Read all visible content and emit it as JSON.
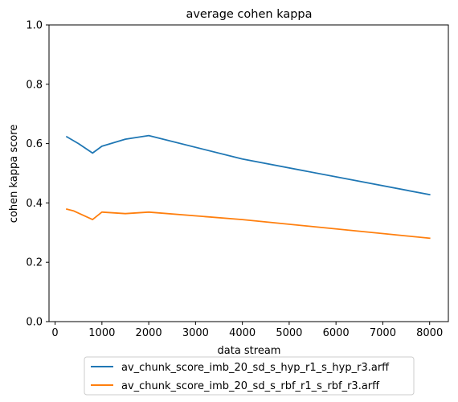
{
  "chart_data": {
    "type": "line",
    "title": "average cohen kappa",
    "xlabel": "data stream",
    "ylabel": "cohen kappa score",
    "xlim": [
      -130,
      8400
    ],
    "ylim": [
      0.0,
      1.0
    ],
    "xticks": [
      0,
      1000,
      2000,
      3000,
      4000,
      5000,
      6000,
      7000,
      8000
    ],
    "yticks": [
      0.0,
      0.2,
      0.4,
      0.6,
      0.8,
      1.0
    ],
    "xtick_labels": [
      "0",
      "1000",
      "2000",
      "3000",
      "4000",
      "5000",
      "6000",
      "7000",
      "8000"
    ],
    "ytick_labels": [
      "0.0",
      "0.2",
      "0.4",
      "0.6",
      "0.8",
      "1.0"
    ],
    "grid": false,
    "legend_position": "bottom-center, below axes",
    "series": [
      {
        "name": "av_chunk_score_imb_20_sd_s_hyp_r1_s_hyp_r3.arff",
        "color": "#1f77b4",
        "x": [
          250,
          500,
          800,
          1000,
          1500,
          2000,
          4000,
          8000
        ],
        "y": [
          0.623,
          0.6,
          0.568,
          0.591,
          0.615,
          0.627,
          0.548,
          0.428
        ]
      },
      {
        "name": "av_chunk_score_imb_20_sd_s_rbf_r1_s_rbf_r3.arff",
        "color": "#ff7f0e",
        "x": [
          250,
          400,
          800,
          1000,
          1500,
          2000,
          4000,
          8000
        ],
        "y": [
          0.379,
          0.373,
          0.344,
          0.369,
          0.364,
          0.369,
          0.344,
          0.281
        ]
      }
    ]
  }
}
